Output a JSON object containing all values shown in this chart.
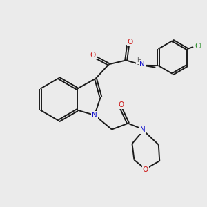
{
  "bg_color": "#ebebeb",
  "bond_color": "#1a1a1a",
  "N_color": "#1414cc",
  "O_color": "#cc1414",
  "Cl_color": "#228b22",
  "H_color": "#555555",
  "lw": 1.4,
  "dbo": 0.055,
  "xlim": [
    0,
    10
  ],
  "ylim": [
    0,
    10
  ]
}
